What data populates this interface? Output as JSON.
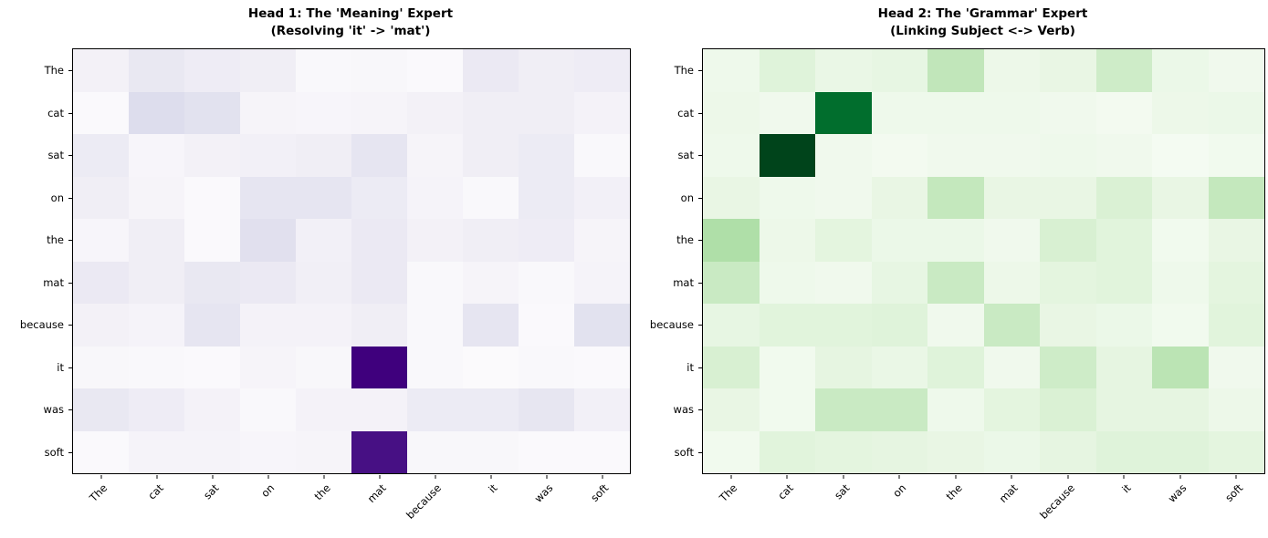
{
  "figure": {
    "background": "#ffffff",
    "text_color": "#000000"
  },
  "tokens": [
    "The",
    "cat",
    "sat",
    "on",
    "the",
    "mat",
    "because",
    "it",
    "was",
    "soft"
  ],
  "chart_data": [
    {
      "type": "heatmap",
      "title": "Head 1: The 'Meaning' Expert",
      "subtitle": "(Resolving 'it' -> 'mat')",
      "colormap_name": "Purples",
      "colormap_anchors": [
        [
          0,
          "#fcfbfd"
        ],
        [
          0.125,
          "#efedf5"
        ],
        [
          0.25,
          "#dadaeb"
        ],
        [
          0.375,
          "#bcbddc"
        ],
        [
          0.5,
          "#9e9ac8"
        ],
        [
          0.625,
          "#807dba"
        ],
        [
          0.75,
          "#6a51a3"
        ],
        [
          0.875,
          "#54278f"
        ],
        [
          1,
          "#3f007d"
        ]
      ],
      "max_cell_color": "#3f007d",
      "x_categories": [
        "The",
        "cat",
        "sat",
        "on",
        "the",
        "mat",
        "because",
        "it",
        "was",
        "soft"
      ],
      "y_categories": [
        "The",
        "cat",
        "sat",
        "on",
        "the",
        "mat",
        "because",
        "it",
        "was",
        "soft"
      ],
      "x_tick_rotation": 45,
      "vmin": 0,
      "vmax": 1,
      "legend": "none",
      "grid": false,
      "values": [
        [
          0.09,
          0.16,
          0.13,
          0.12,
          0.03,
          0.04,
          0.02,
          0.15,
          0.12,
          0.13
        ],
        [
          0.02,
          0.23,
          0.2,
          0.06,
          0.05,
          0.06,
          0.09,
          0.12,
          0.12,
          0.08
        ],
        [
          0.14,
          0.05,
          0.09,
          0.1,
          0.12,
          0.18,
          0.06,
          0.12,
          0.14,
          0.03
        ],
        [
          0.12,
          0.06,
          0.02,
          0.18,
          0.18,
          0.14,
          0.07,
          0.03,
          0.14,
          0.1
        ],
        [
          0.05,
          0.12,
          0.02,
          0.21,
          0.1,
          0.15,
          0.09,
          0.12,
          0.13,
          0.06
        ],
        [
          0.15,
          0.12,
          0.16,
          0.15,
          0.11,
          0.15,
          0.03,
          0.06,
          0.03,
          0.07
        ],
        [
          0.09,
          0.07,
          0.18,
          0.08,
          0.08,
          0.12,
          0.03,
          0.18,
          0.02,
          0.2
        ],
        [
          0.04,
          0.03,
          0.02,
          0.06,
          0.04,
          1.0,
          0.03,
          0.01,
          0.03,
          0.02
        ],
        [
          0.16,
          0.13,
          0.08,
          0.03,
          0.08,
          0.08,
          0.14,
          0.14,
          0.17,
          0.1
        ],
        [
          0.02,
          0.07,
          0.07,
          0.05,
          0.06,
          0.95,
          0.04,
          0.04,
          0.02,
          0.02
        ]
      ],
      "notable_cells": [
        {
          "row": "it",
          "col": "mat",
          "value": 1.0
        },
        {
          "row": "soft",
          "col": "mat",
          "value": 0.95
        }
      ]
    },
    {
      "type": "heatmap",
      "title": "Head 2: The 'Grammar' Expert",
      "subtitle": "(Linking Subject <-> Verb)",
      "colormap_name": "Greens",
      "colormap_anchors": [
        [
          0,
          "#f7fcf5"
        ],
        [
          0.125,
          "#e5f5e0"
        ],
        [
          0.25,
          "#c7e9c0"
        ],
        [
          0.375,
          "#a1d99b"
        ],
        [
          0.5,
          "#74c476"
        ],
        [
          0.625,
          "#41ab5d"
        ],
        [
          0.75,
          "#238b45"
        ],
        [
          0.875,
          "#006d2c"
        ],
        [
          1,
          "#00441b"
        ]
      ],
      "max_cell_color": "#00441b",
      "x_categories": [
        "The",
        "cat",
        "sat",
        "on",
        "the",
        "mat",
        "because",
        "it",
        "was",
        "soft"
      ],
      "y_categories": [
        "The",
        "cat",
        "sat",
        "on",
        "the",
        "mat",
        "because",
        "it",
        "was",
        "soft"
      ],
      "x_tick_rotation": 45,
      "vmin": 0,
      "vmax": 1,
      "legend": "none",
      "grid": false,
      "values": [
        [
          0.06,
          0.15,
          0.09,
          0.11,
          0.27,
          0.07,
          0.1,
          0.22,
          0.08,
          0.05
        ],
        [
          0.07,
          0.05,
          0.87,
          0.06,
          0.06,
          0.06,
          0.05,
          0.03,
          0.07,
          0.08
        ],
        [
          0.06,
          1.0,
          0.05,
          0.03,
          0.05,
          0.05,
          0.06,
          0.05,
          0.02,
          0.04
        ],
        [
          0.1,
          0.06,
          0.05,
          0.1,
          0.26,
          0.1,
          0.1,
          0.17,
          0.1,
          0.26
        ],
        [
          0.33,
          0.07,
          0.13,
          0.08,
          0.08,
          0.05,
          0.18,
          0.14,
          0.04,
          0.1
        ],
        [
          0.24,
          0.06,
          0.05,
          0.11,
          0.24,
          0.07,
          0.13,
          0.14,
          0.06,
          0.13
        ],
        [
          0.11,
          0.14,
          0.14,
          0.15,
          0.05,
          0.24,
          0.1,
          0.08,
          0.04,
          0.14
        ],
        [
          0.18,
          0.04,
          0.12,
          0.09,
          0.15,
          0.05,
          0.22,
          0.12,
          0.29,
          0.05
        ],
        [
          0.1,
          0.04,
          0.24,
          0.24,
          0.06,
          0.13,
          0.17,
          0.12,
          0.12,
          0.07
        ],
        [
          0.04,
          0.14,
          0.13,
          0.12,
          0.1,
          0.08,
          0.12,
          0.15,
          0.15,
          0.13
        ]
      ],
      "notable_cells": [
        {
          "row": "sat",
          "col": "cat",
          "value": 1.0
        },
        {
          "row": "cat",
          "col": "sat",
          "value": 0.87
        }
      ]
    }
  ]
}
